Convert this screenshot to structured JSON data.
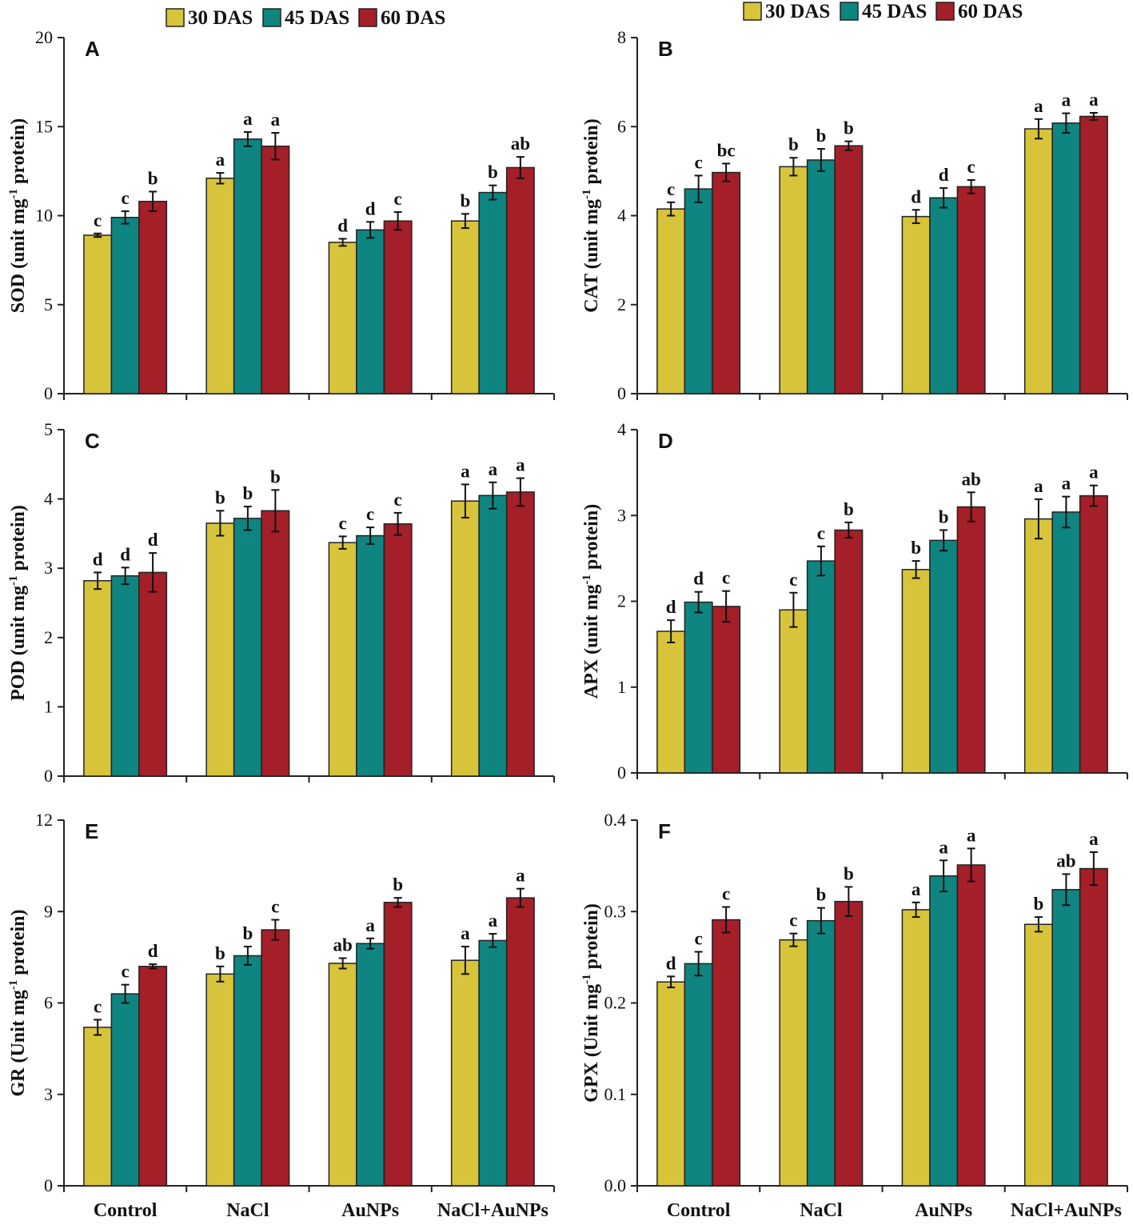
{
  "legend": [
    "30 DAS",
    "45 DAS",
    "60 DAS"
  ],
  "colors": {
    "30 DAS": "#d8c43a",
    "45 DAS": "#0e8580",
    "60 DAS": "#a41f28"
  },
  "categories": [
    "Control",
    "NaCl",
    "AuNPs",
    "NaCl+AuNPs"
  ],
  "chart_data": [
    {
      "panel": "A",
      "type": "bar",
      "ylabel_pre": "SOD (unit mg",
      "ylabel_sup": "-1",
      "ylabel_post": " protein)",
      "ylim": [
        0,
        20
      ],
      "yticks": [
        0,
        5,
        10,
        15,
        20
      ],
      "tick_format": "0",
      "categories": [
        "Control",
        "NaCl",
        "AuNPs",
        "NaCl+AuNPs"
      ],
      "series": [
        {
          "name": "30 DAS",
          "values": [
            8.9,
            12.1,
            8.5,
            9.7
          ],
          "errors": [
            0.1,
            0.3,
            0.2,
            0.4
          ],
          "labels": [
            "c",
            "a",
            "d",
            "b"
          ]
        },
        {
          "name": "45 DAS",
          "values": [
            9.9,
            14.3,
            9.2,
            11.3
          ],
          "errors": [
            0.35,
            0.4,
            0.45,
            0.4
          ],
          "labels": [
            "c",
            "a",
            "d",
            "b"
          ]
        },
        {
          "name": "60 DAS",
          "values": [
            10.8,
            13.9,
            9.7,
            12.7
          ],
          "errors": [
            0.55,
            0.75,
            0.5,
            0.6
          ],
          "labels": [
            "b",
            "a",
            "c",
            "ab"
          ]
        }
      ]
    },
    {
      "panel": "B",
      "type": "bar",
      "ylabel_pre": "CAT (unit mg",
      "ylabel_sup": "-1",
      "ylabel_post": " protein)",
      "ylim": [
        0,
        8
      ],
      "yticks": [
        0,
        2,
        4,
        6,
        8
      ],
      "tick_format": "0",
      "categories": [
        "Control",
        "NaCl",
        "AuNPs",
        "NaCl+AuNPs"
      ],
      "series": [
        {
          "name": "30 DAS",
          "values": [
            4.15,
            5.1,
            3.98,
            5.95
          ],
          "errors": [
            0.15,
            0.2,
            0.15,
            0.22
          ],
          "labels": [
            "c",
            "b",
            "d",
            "a"
          ]
        },
        {
          "name": "45 DAS",
          "values": [
            4.6,
            5.25,
            4.4,
            6.08
          ],
          "errors": [
            0.3,
            0.25,
            0.22,
            0.22
          ],
          "labels": [
            "c",
            "b",
            "d",
            "a"
          ]
        },
        {
          "name": "60 DAS",
          "values": [
            4.97,
            5.57,
            4.65,
            6.23
          ],
          "errors": [
            0.2,
            0.1,
            0.15,
            0.08
          ],
          "labels": [
            "bc",
            "b",
            "c",
            "a"
          ]
        }
      ]
    },
    {
      "panel": "C",
      "type": "bar",
      "ylabel_pre": "POD (unit mg",
      "ylabel_sup": "-1",
      "ylabel_post": " protein)",
      "ylim": [
        0,
        5
      ],
      "yticks": [
        0,
        1,
        2,
        3,
        4,
        5
      ],
      "tick_format": "0",
      "categories": [
        "Control",
        "NaCl",
        "AuNPs",
        "NaCl+AuNPs"
      ],
      "series": [
        {
          "name": "30 DAS",
          "values": [
            2.82,
            3.65,
            3.37,
            3.97
          ],
          "errors": [
            0.12,
            0.18,
            0.09,
            0.24
          ],
          "labels": [
            "d",
            "b",
            "c",
            "a"
          ]
        },
        {
          "name": "45 DAS",
          "values": [
            2.89,
            3.72,
            3.47,
            4.05
          ],
          "errors": [
            0.12,
            0.17,
            0.12,
            0.19
          ],
          "labels": [
            "d",
            "b",
            "c",
            "a"
          ]
        },
        {
          "name": "60 DAS",
          "values": [
            2.94,
            3.83,
            3.64,
            4.1
          ],
          "errors": [
            0.28,
            0.3,
            0.16,
            0.2
          ],
          "labels": [
            "d",
            "b",
            "c",
            "a"
          ]
        }
      ]
    },
    {
      "panel": "D",
      "type": "bar",
      "ylabel_pre": "APX (unit mg",
      "ylabel_sup": "-1",
      "ylabel_post": " protein)",
      "ylim": [
        0,
        4
      ],
      "yticks": [
        0,
        1,
        2,
        3,
        4
      ],
      "tick_format": "0",
      "categories": [
        "Control",
        "NaCl",
        "AuNPs",
        "NaCl+AuNPs"
      ],
      "series": [
        {
          "name": "30 DAS",
          "values": [
            1.65,
            1.9,
            2.37,
            2.96
          ],
          "errors": [
            0.13,
            0.2,
            0.1,
            0.23
          ],
          "labels": [
            "d",
            "c",
            "b",
            "a"
          ]
        },
        {
          "name": "45 DAS",
          "values": [
            1.99,
            2.47,
            2.71,
            3.04
          ],
          "errors": [
            0.12,
            0.17,
            0.12,
            0.18
          ],
          "labels": [
            "d",
            "c",
            "b",
            "a"
          ]
        },
        {
          "name": "60 DAS",
          "values": [
            1.94,
            2.83,
            3.1,
            3.23
          ],
          "errors": [
            0.18,
            0.09,
            0.17,
            0.12
          ],
          "labels": [
            "c",
            "b",
            "ab",
            "a"
          ]
        }
      ]
    },
    {
      "panel": "E",
      "type": "bar",
      "ylabel_pre": "GR (Unit mg",
      "ylabel_sup": "-1",
      "ylabel_post": " protein)",
      "ylim": [
        0,
        12
      ],
      "yticks": [
        0,
        3,
        6,
        9,
        12
      ],
      "tick_format": "0",
      "categories": [
        "Control",
        "NaCl",
        "AuNPs",
        "NaCl+AuNPs"
      ],
      "series": [
        {
          "name": "30 DAS",
          "values": [
            5.2,
            6.95,
            7.3,
            7.4
          ],
          "errors": [
            0.25,
            0.25,
            0.17,
            0.45
          ],
          "labels": [
            "c",
            "b",
            "ab",
            "a"
          ]
        },
        {
          "name": "45 DAS",
          "values": [
            6.3,
            7.55,
            7.95,
            8.05
          ],
          "errors": [
            0.3,
            0.3,
            0.17,
            0.22
          ],
          "labels": [
            "c",
            "b",
            "a",
            "a"
          ]
        },
        {
          "name": "60 DAS",
          "values": [
            7.2,
            8.4,
            9.3,
            9.45
          ],
          "errors": [
            0.07,
            0.33,
            0.15,
            0.3
          ],
          "labels": [
            "d",
            "c",
            "b",
            "a"
          ]
        }
      ]
    },
    {
      "panel": "F",
      "type": "bar",
      "ylabel_pre": "GPX (Unit mg",
      "ylabel_sup": "-1",
      "ylabel_post": " protein)",
      "ylim": [
        0,
        0.4
      ],
      "yticks": [
        0,
        0.1,
        0.2,
        0.3,
        0.4
      ],
      "tick_format": "0.0",
      "categories": [
        "Control",
        "NaCl",
        "AuNPs",
        "NaCl+AuNPs"
      ],
      "series": [
        {
          "name": "30 DAS",
          "values": [
            0.223,
            0.269,
            0.302,
            0.286
          ],
          "errors": [
            0.006,
            0.007,
            0.008,
            0.008
          ],
          "labels": [
            "d",
            "c",
            "a",
            "b"
          ]
        },
        {
          "name": "45 DAS",
          "values": [
            0.243,
            0.29,
            0.339,
            0.324
          ],
          "errors": [
            0.013,
            0.014,
            0.017,
            0.017
          ],
          "labels": [
            "c",
            "b",
            "a",
            "ab"
          ]
        },
        {
          "name": "60 DAS",
          "values": [
            0.291,
            0.311,
            0.351,
            0.347
          ],
          "errors": [
            0.014,
            0.016,
            0.018,
            0.018
          ],
          "labels": [
            "c",
            "b",
            "a",
            "a"
          ]
        }
      ]
    }
  ]
}
